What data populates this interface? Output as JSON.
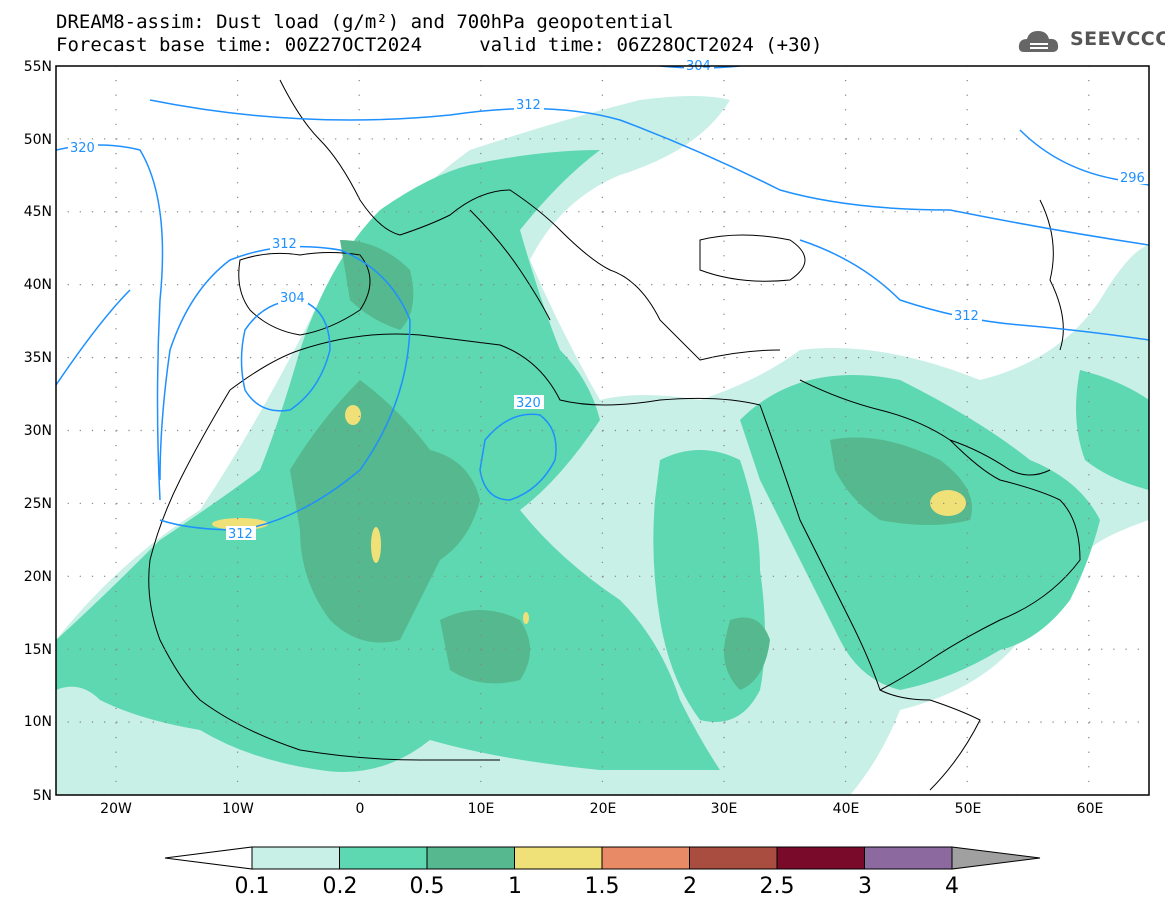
{
  "header": {
    "title_line1": "DREAM8-assim: Dust load (g/m²) and 700hPa geopotential",
    "title_line2": "Forecast base time: 00Z27OCT2024     valid time: 06Z28OCT2024 (+30)"
  },
  "logo": {
    "text": "SEEVCCC",
    "icon": "cloud-icon"
  },
  "map": {
    "lat_labels": [
      "55N",
      "50N",
      "45N",
      "40N",
      "35N",
      "30N",
      "25N",
      "20N",
      "15N",
      "10N",
      "5N"
    ],
    "lon_labels": [
      "20W",
      "10W",
      "0",
      "10E",
      "20E",
      "30E",
      "40E",
      "50E",
      "60E"
    ],
    "contour_labels": [
      "320",
      "312",
      "312",
      "304",
      "320",
      "312",
      "312",
      "296",
      "304"
    ],
    "colors": {
      "c_0_1": "#c8f0e6",
      "c_0_2": "#5ed8b0",
      "c_0_5": "#55b88e",
      "c_1": "#f0e078",
      "contour": "#1e90ff",
      "coast": "#000000"
    }
  },
  "colorbar": {
    "labels": [
      "0.1",
      "0.2",
      "0.5",
      "1",
      "1.5",
      "2",
      "2.5",
      "3",
      "4"
    ],
    "colors": [
      "#c8f0e6",
      "#5ed8b0",
      "#55b88e",
      "#f0e078",
      "#e88a66",
      "#a84d40",
      "#7a0a2a",
      "#8c6aa0"
    ],
    "end_colors": {
      "low": "#ffffff",
      "high": "#a0a0a0"
    }
  }
}
